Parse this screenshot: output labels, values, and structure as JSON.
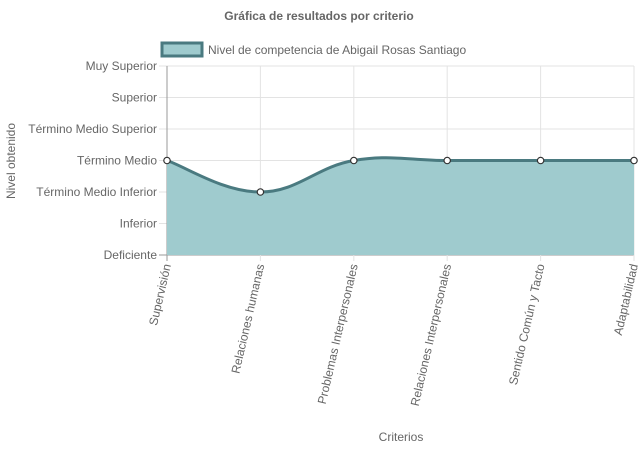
{
  "chart_data": {
    "type": "area",
    "title": "Gráfica de resultados por criterio",
    "xlabel": "Criterios",
    "ylabel": "Nivel obtenido",
    "y_levels": [
      "Deficiente",
      "Inferior",
      "Término Medio Inferior",
      "Término Medio",
      "Término Medio Superior",
      "Superior",
      "Muy Superior"
    ],
    "ylim": [
      0,
      6
    ],
    "categories": [
      "Supervisión",
      "Relaciones humanas",
      "Problemas Interpersonales",
      "Relaciones Interpersonales",
      "Sentido Común y Tacto",
      "Adaptabilidad"
    ],
    "series": [
      {
        "name": "Nivel de competencia de Abigail Rosas Santiago",
        "values": [
          3,
          2,
          3,
          3,
          3,
          3
        ],
        "values_labels": [
          "Término Medio",
          "Término Medio Inferior",
          "Término Medio",
          "Término Medio",
          "Término Medio",
          "Término Medio"
        ]
      }
    ],
    "legend_position": "top",
    "grid": true,
    "colors": {
      "fill": "#9fcbce",
      "line": "#4a7a80",
      "grid": "#e3e3e3",
      "axis": "#9a9a9a",
      "text": "#666666"
    }
  }
}
